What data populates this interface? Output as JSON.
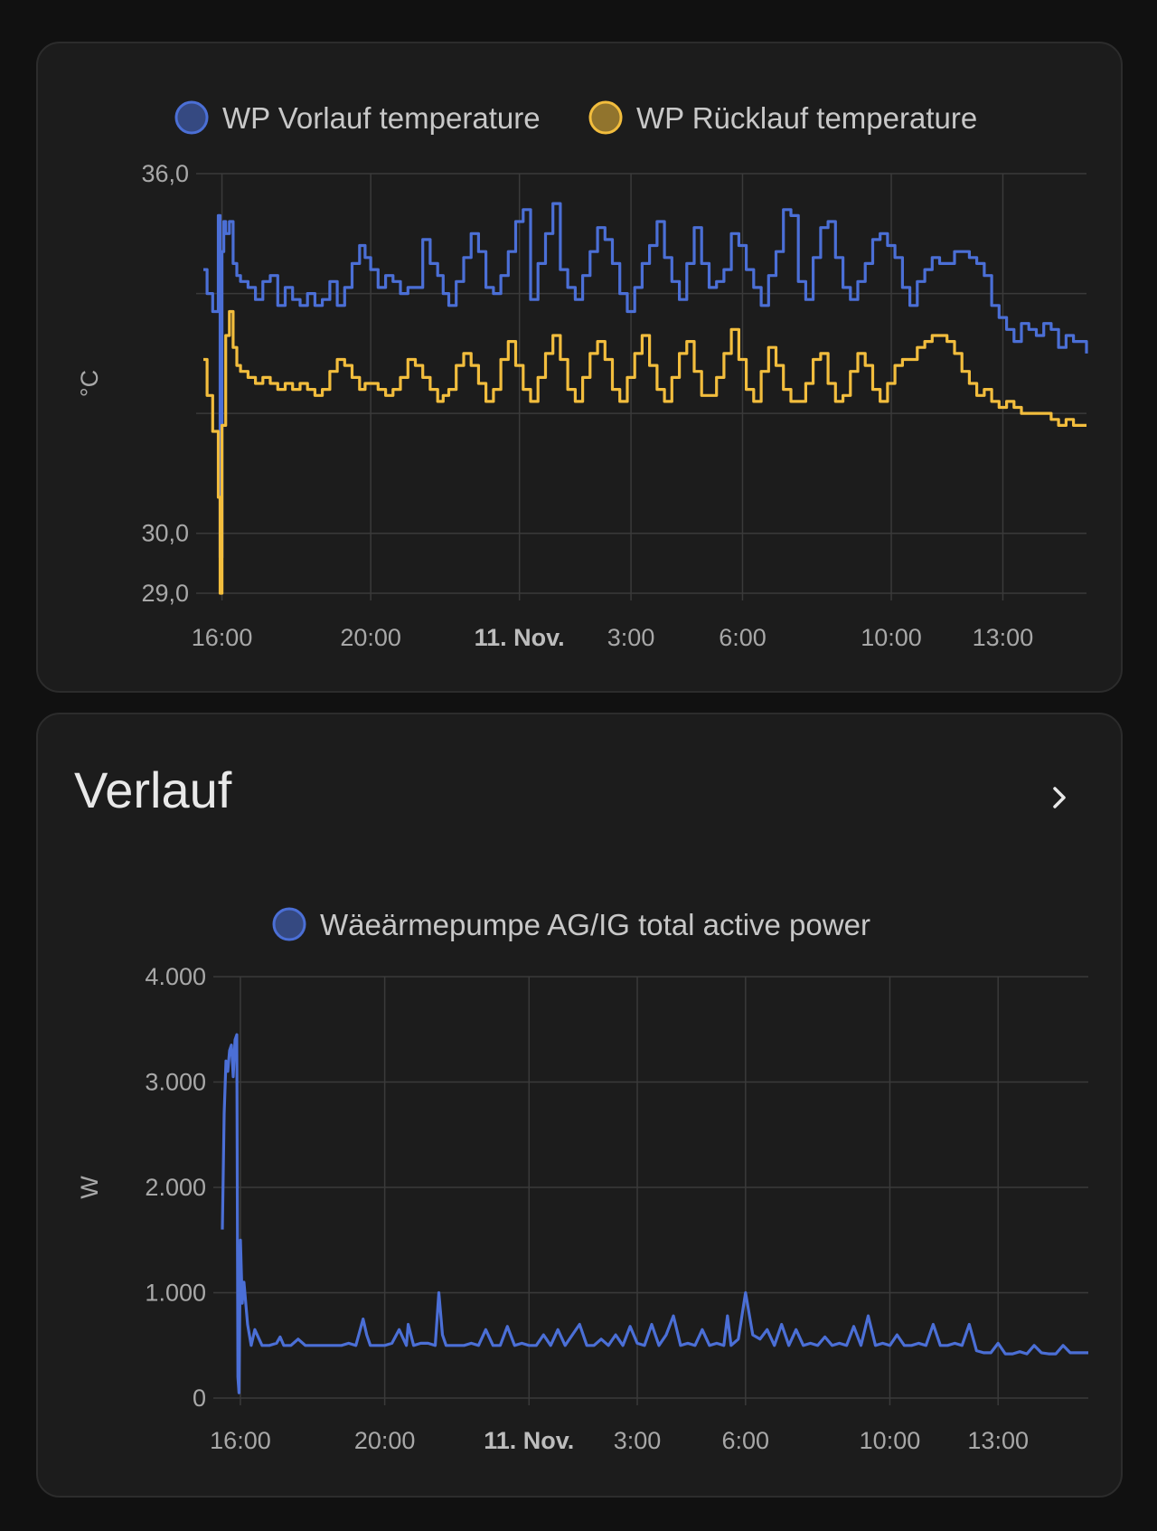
{
  "colors": {
    "background": "#111111",
    "card": "#1c1c1c",
    "blue": "#4b6fd6",
    "yellow": "#f2bd3d",
    "grid": "#3a3a3a"
  },
  "card2": {
    "title": "Verlauf",
    "more_icon": "chevron-right-icon"
  },
  "chart_data": [
    {
      "type": "line",
      "step": true,
      "ylabel": "°C",
      "ylim": [
        29,
        36
      ],
      "yticks": [
        {
          "value": 29,
          "label": "29,0"
        },
        {
          "value": 30,
          "label": "30,0"
        },
        {
          "value": 36,
          "label": "36,0"
        }
      ],
      "ygrid": [
        29,
        30,
        32,
        34,
        36
      ],
      "xlim": [
        15.5,
        39.25
      ],
      "xticks": [
        {
          "value": 16,
          "label": "16:00",
          "bold": false
        },
        {
          "value": 20,
          "label": "20:00",
          "bold": false
        },
        {
          "value": 24,
          "label": "11. Nov.",
          "bold": true
        },
        {
          "value": 27,
          "label": "3:00",
          "bold": false
        },
        {
          "value": 30,
          "label": "6:00",
          "bold": false
        },
        {
          "value": 34,
          "label": "10:00",
          "bold": false
        },
        {
          "value": 37,
          "label": "13:00",
          "bold": false
        }
      ],
      "series": [
        {
          "name": "WP Vorlauf temperature",
          "color": "#4b6fd6",
          "x": [
            15.5,
            15.6,
            15.75,
            15.9,
            15.95,
            16.0,
            16.05,
            16.1,
            16.2,
            16.3,
            16.4,
            16.5,
            16.7,
            16.9,
            17.1,
            17.3,
            17.5,
            17.7,
            17.9,
            18.1,
            18.3,
            18.5,
            18.7,
            18.9,
            19.1,
            19.3,
            19.5,
            19.7,
            19.85,
            20.0,
            20.2,
            20.4,
            20.6,
            20.8,
            21.0,
            21.2,
            21.4,
            21.6,
            21.8,
            21.95,
            22.1,
            22.3,
            22.5,
            22.7,
            22.9,
            23.1,
            23.3,
            23.5,
            23.7,
            23.9,
            24.1,
            24.3,
            24.5,
            24.7,
            24.9,
            25.1,
            25.3,
            25.5,
            25.7,
            25.9,
            26.1,
            26.3,
            26.5,
            26.7,
            26.9,
            27.1,
            27.3,
            27.5,
            27.7,
            27.9,
            28.1,
            28.3,
            28.5,
            28.7,
            28.9,
            29.1,
            29.3,
            29.5,
            29.7,
            29.9,
            30.1,
            30.3,
            30.5,
            30.7,
            30.9,
            31.1,
            31.3,
            31.5,
            31.7,
            31.9,
            32.1,
            32.3,
            32.5,
            32.7,
            32.9,
            33.1,
            33.3,
            33.5,
            33.7,
            33.9,
            34.1,
            34.3,
            34.5,
            34.7,
            34.9,
            35.1,
            35.3,
            35.5,
            35.7,
            35.9,
            36.1,
            36.3,
            36.5,
            36.7,
            36.9,
            37.1,
            37.3,
            37.5,
            37.7,
            37.9,
            38.1,
            38.3,
            38.5,
            38.7,
            38.9,
            39.25
          ],
          "values": [
            34.4,
            34.0,
            33.7,
            35.3,
            29.6,
            34.7,
            35.2,
            35.0,
            35.2,
            34.5,
            34.3,
            34.2,
            34.1,
            33.9,
            34.2,
            34.3,
            33.8,
            34.1,
            33.9,
            33.8,
            34.0,
            33.8,
            33.9,
            34.2,
            33.8,
            34.1,
            34.5,
            34.8,
            34.6,
            34.4,
            34.1,
            34.3,
            34.2,
            34.0,
            34.1,
            34.1,
            34.9,
            34.5,
            34.3,
            34.0,
            33.8,
            34.2,
            34.6,
            35.0,
            34.7,
            34.1,
            34.0,
            34.3,
            34.7,
            35.2,
            35.4,
            33.9,
            34.5,
            35.0,
            35.5,
            34.4,
            34.1,
            33.9,
            34.3,
            34.7,
            35.1,
            34.9,
            34.5,
            34.0,
            33.7,
            34.1,
            34.5,
            34.8,
            35.2,
            34.6,
            34.2,
            33.9,
            34.5,
            35.1,
            34.5,
            34.1,
            34.2,
            34.4,
            35.0,
            34.8,
            34.4,
            34.1,
            33.8,
            34.3,
            34.7,
            35.4,
            35.3,
            34.2,
            33.9,
            34.6,
            35.1,
            35.2,
            34.6,
            34.1,
            33.9,
            34.2,
            34.5,
            34.9,
            35.0,
            34.8,
            34.6,
            34.1,
            33.8,
            34.2,
            34.4,
            34.6,
            34.5,
            34.5,
            34.7,
            34.7,
            34.6,
            34.5,
            34.3,
            33.8,
            33.6,
            33.4,
            33.2,
            33.5,
            33.4,
            33.3,
            33.5,
            33.4,
            33.1,
            33.3,
            33.2,
            33.0
          ],
          "label": ""
        },
        {
          "name": "WP Rücklauf temperature",
          "color": "#f2bd3d",
          "x": [
            15.5,
            15.6,
            15.75,
            15.9,
            15.95,
            16.0,
            16.1,
            16.2,
            16.3,
            16.4,
            16.5,
            16.7,
            16.9,
            17.1,
            17.3,
            17.5,
            17.7,
            17.9,
            18.1,
            18.3,
            18.5,
            18.7,
            18.9,
            19.1,
            19.3,
            19.5,
            19.7,
            19.85,
            20.0,
            20.2,
            20.4,
            20.6,
            20.8,
            21.0,
            21.2,
            21.4,
            21.6,
            21.8,
            21.95,
            22.1,
            22.3,
            22.5,
            22.7,
            22.9,
            23.1,
            23.3,
            23.5,
            23.7,
            23.9,
            24.1,
            24.3,
            24.5,
            24.7,
            24.9,
            25.1,
            25.3,
            25.5,
            25.7,
            25.9,
            26.1,
            26.3,
            26.5,
            26.7,
            26.9,
            27.1,
            27.3,
            27.5,
            27.7,
            27.9,
            28.1,
            28.3,
            28.5,
            28.7,
            28.9,
            29.1,
            29.3,
            29.5,
            29.7,
            29.9,
            30.1,
            30.3,
            30.5,
            30.7,
            30.9,
            31.1,
            31.3,
            31.5,
            31.7,
            31.9,
            32.1,
            32.3,
            32.5,
            32.7,
            32.9,
            33.1,
            33.3,
            33.5,
            33.7,
            33.9,
            34.1,
            34.3,
            34.5,
            34.7,
            34.9,
            35.1,
            35.3,
            35.5,
            35.7,
            35.9,
            36.1,
            36.3,
            36.5,
            36.7,
            36.9,
            37.1,
            37.3,
            37.5,
            37.7,
            37.9,
            38.1,
            38.3,
            38.5,
            38.7,
            38.9,
            39.25
          ],
          "values": [
            32.9,
            32.3,
            31.7,
            30.6,
            29.0,
            31.8,
            33.3,
            33.7,
            33.1,
            32.8,
            32.7,
            32.6,
            32.5,
            32.6,
            32.5,
            32.4,
            32.5,
            32.4,
            32.5,
            32.4,
            32.3,
            32.4,
            32.7,
            32.9,
            32.8,
            32.6,
            32.4,
            32.5,
            32.5,
            32.4,
            32.3,
            32.4,
            32.6,
            32.9,
            32.8,
            32.6,
            32.4,
            32.2,
            32.3,
            32.4,
            32.8,
            33.0,
            32.8,
            32.5,
            32.2,
            32.4,
            32.9,
            33.2,
            32.8,
            32.4,
            32.2,
            32.6,
            33.0,
            33.3,
            32.9,
            32.4,
            32.2,
            32.6,
            33.0,
            33.2,
            32.9,
            32.4,
            32.2,
            32.6,
            33.0,
            33.3,
            32.8,
            32.4,
            32.2,
            32.6,
            33.0,
            33.2,
            32.7,
            32.3,
            32.3,
            32.6,
            33.0,
            33.4,
            32.9,
            32.4,
            32.2,
            32.7,
            33.1,
            32.8,
            32.4,
            32.2,
            32.2,
            32.5,
            32.9,
            33.0,
            32.5,
            32.2,
            32.3,
            32.7,
            33.0,
            32.8,
            32.4,
            32.2,
            32.5,
            32.8,
            32.9,
            32.9,
            33.1,
            33.2,
            33.3,
            33.3,
            33.2,
            33.0,
            32.7,
            32.5,
            32.3,
            32.4,
            32.2,
            32.1,
            32.2,
            32.1,
            32.0,
            32.0,
            32.0,
            32.0,
            31.9,
            31.8,
            31.9,
            31.8,
            31.8
          ],
          "label": ""
        }
      ]
    },
    {
      "type": "line",
      "ylabel": "W",
      "ylim": [
        0,
        4000
      ],
      "yticks": [
        {
          "value": 0,
          "label": "0"
        },
        {
          "value": 1000,
          "label": "1.000"
        },
        {
          "value": 2000,
          "label": "2.000"
        },
        {
          "value": 3000,
          "label": "3.000"
        },
        {
          "value": 4000,
          "label": "4.000"
        }
      ],
      "ygrid": [
        0,
        1000,
        2000,
        3000,
        4000
      ],
      "xlim": [
        15.45,
        39.5
      ],
      "xticks": [
        {
          "value": 16,
          "label": "16:00",
          "bold": false
        },
        {
          "value": 20,
          "label": "20:00",
          "bold": false
        },
        {
          "value": 24,
          "label": "11. Nov.",
          "bold": true
        },
        {
          "value": 27,
          "label": "3:00",
          "bold": false
        },
        {
          "value": 30,
          "label": "6:00",
          "bold": false
        },
        {
          "value": 34,
          "label": "10:00",
          "bold": false
        },
        {
          "value": 37,
          "label": "13:00",
          "bold": false
        }
      ],
      "series": [
        {
          "name": "Wäeärmepumpe AG/IG total active power",
          "color": "#4b6fd6",
          "x": [
            15.5,
            15.55,
            15.6,
            15.65,
            15.7,
            15.75,
            15.8,
            15.85,
            15.9,
            15.93,
            15.96,
            16.0,
            16.05,
            16.1,
            16.2,
            16.3,
            16.4,
            16.6,
            16.8,
            17.0,
            17.1,
            17.2,
            17.4,
            17.6,
            17.8,
            18.0,
            18.2,
            18.4,
            18.6,
            18.8,
            19.0,
            19.2,
            19.4,
            19.5,
            19.6,
            19.8,
            20.0,
            20.2,
            20.4,
            20.6,
            20.65,
            20.8,
            21.0,
            21.2,
            21.4,
            21.5,
            21.6,
            21.7,
            22.0,
            22.2,
            22.4,
            22.6,
            22.8,
            23.0,
            23.2,
            23.4,
            23.6,
            23.8,
            24.0,
            24.2,
            24.4,
            24.6,
            24.8,
            25.0,
            25.2,
            25.4,
            25.6,
            25.8,
            26.0,
            26.2,
            26.4,
            26.6,
            26.8,
            27.0,
            27.2,
            27.4,
            27.6,
            27.8,
            28.0,
            28.2,
            28.4,
            28.6,
            28.8,
            29.0,
            29.2,
            29.4,
            29.5,
            29.6,
            29.8,
            30.0,
            30.2,
            30.4,
            30.6,
            30.8,
            31.0,
            31.2,
            31.4,
            31.6,
            31.8,
            32.0,
            32.2,
            32.4,
            32.6,
            32.8,
            33.0,
            33.2,
            33.4,
            33.6,
            33.8,
            34.0,
            34.2,
            34.4,
            34.6,
            34.8,
            35.0,
            35.2,
            35.4,
            35.6,
            35.8,
            36.0,
            36.2,
            36.4,
            36.6,
            36.8,
            37.0,
            37.2,
            37.4,
            37.6,
            37.8,
            38.0,
            38.2,
            38.4,
            38.6,
            38.8,
            39.0,
            39.2,
            39.5
          ],
          "values": [
            1600,
            2700,
            3200,
            3100,
            3300,
            3350,
            3050,
            3400,
            3450,
            200,
            50,
            1500,
            900,
            1100,
            700,
            500,
            650,
            500,
            500,
            520,
            580,
            500,
            500,
            560,
            500,
            500,
            500,
            500,
            500,
            500,
            520,
            500,
            750,
            600,
            500,
            500,
            500,
            520,
            650,
            500,
            700,
            500,
            520,
            520,
            500,
            1000,
            600,
            500,
            500,
            500,
            520,
            500,
            650,
            500,
            500,
            680,
            500,
            520,
            500,
            500,
            600,
            500,
            650,
            500,
            600,
            700,
            500,
            500,
            560,
            500,
            600,
            500,
            680,
            520,
            500,
            700,
            500,
            600,
            780,
            500,
            520,
            500,
            650,
            500,
            520,
            500,
            780,
            500,
            560,
            1000,
            600,
            560,
            650,
            500,
            700,
            500,
            650,
            500,
            520,
            500,
            580,
            500,
            520,
            500,
            680,
            500,
            780,
            500,
            520,
            500,
            600,
            500,
            500,
            520,
            500,
            700,
            500,
            500,
            520,
            500,
            700,
            450,
            430,
            430,
            520,
            420,
            420,
            440,
            420,
            500,
            430,
            420,
            420,
            500,
            430,
            430,
            430
          ],
          "label": ""
        }
      ]
    }
  ]
}
